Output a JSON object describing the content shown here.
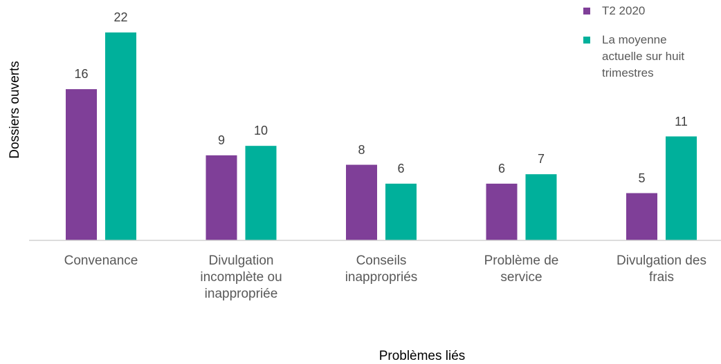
{
  "chart_data": {
    "type": "bar",
    "categories": [
      "Convenance",
      "Divulgation incomplète ou inappropriée",
      "Conseils inappropriés",
      "Problème de service",
      "Divulgation des frais"
    ],
    "series": [
      {
        "name": "T2 2020",
        "color": "#7f3f98",
        "values": [
          16,
          9,
          8,
          6,
          5
        ]
      },
      {
        "name": "La moyenne actuelle sur huit trimestres",
        "color": "#00b09b",
        "values": [
          22,
          10,
          6,
          7,
          11
        ]
      }
    ],
    "ylim": [
      0,
      22
    ],
    "y_label": "Dossiers ouverts",
    "x_label": "Problèmes liés",
    "legend": "top-right"
  }
}
